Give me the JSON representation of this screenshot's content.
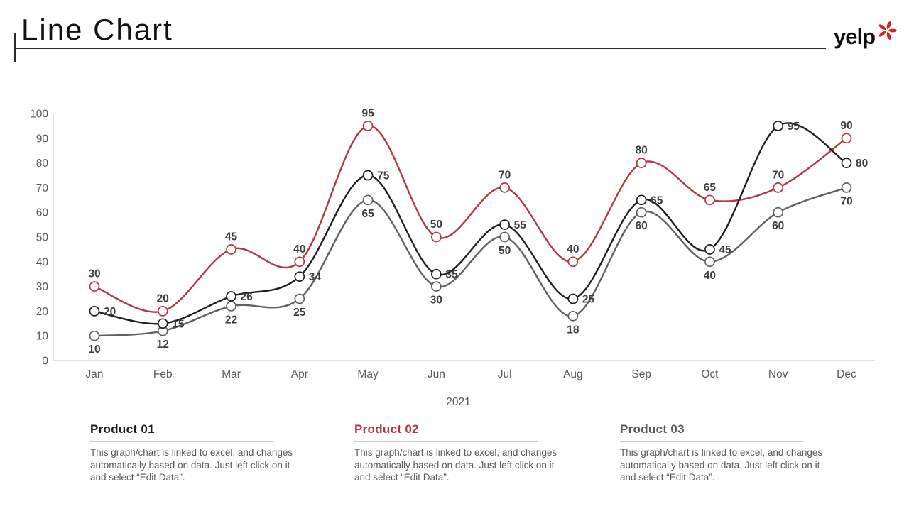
{
  "header": {
    "title": "Line Chart",
    "logo_text": "yelp",
    "logo_burst_color": "#d32323"
  },
  "chart_data": {
    "type": "line",
    "x": [
      "Jan",
      "Feb",
      "Mar",
      "Apr",
      "May",
      "Jun",
      "Jul",
      "Aug",
      "Sep",
      "Oct",
      "Nov",
      "Dec"
    ],
    "xlabel": "2021",
    "ylim": [
      0,
      100
    ],
    "yticks": [
      0,
      10,
      20,
      30,
      40,
      50,
      60,
      70,
      80,
      90,
      100
    ],
    "grid": false,
    "legend_position": "none",
    "series": [
      {
        "name": "Product 01",
        "color": "#1f1f1f",
        "values": [
          20,
          15,
          26,
          34,
          75,
          35,
          55,
          25,
          65,
          45,
          95,
          80
        ],
        "label_position": "right"
      },
      {
        "name": "Product 02",
        "color": "#b23a42",
        "values": [
          30,
          20,
          45,
          40,
          95,
          50,
          70,
          40,
          80,
          65,
          70,
          90
        ],
        "label_position": "above"
      },
      {
        "name": "Product 03",
        "color": "#606060",
        "values": [
          10,
          12,
          22,
          25,
          65,
          30,
          50,
          18,
          60,
          40,
          60,
          70
        ],
        "label_position": "below"
      }
    ],
    "label_color": "#3d3d3d",
    "axis_color": "#d6d6d6",
    "tick_label_color": "#595959"
  },
  "footers": [
    {
      "title": "Product 01",
      "title_color": "#1f1f1f",
      "body": "This graph/chart is linked to excel, and changes automatically based on data. Just left click on it and select “Edit Data”."
    },
    {
      "title": "Product 02",
      "title_color": "#b23a42",
      "body": "This graph/chart is linked to excel, and changes automatically based on data. Just left click on it and select “Edit Data”."
    },
    {
      "title": "Product 03",
      "title_color": "#595959",
      "body": "This graph/chart is linked to excel, and changes automatically based on data. Just left click on it and select “Edit Data”."
    }
  ]
}
